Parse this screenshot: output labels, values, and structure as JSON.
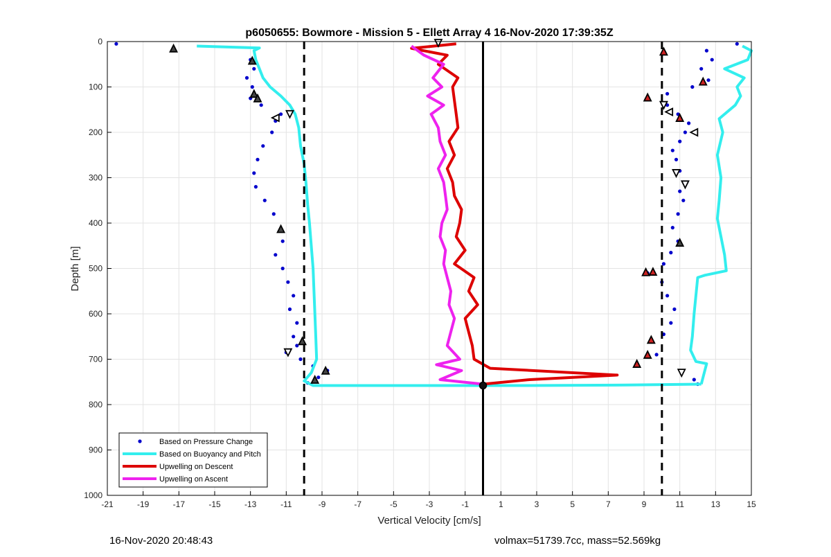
{
  "chart_data": {
    "type": "scatter",
    "title": "p6050655: Bowmore - Mission 5 - Ellett Array 4 16-Nov-2020 17:39:35Z",
    "xlabel": "Vertical Velocity [cm/s]",
    "ylabel": "Depth [m]",
    "xlim": [
      -21,
      15
    ],
    "ylim": [
      0,
      1000
    ],
    "y_reversed": true,
    "grid": true,
    "xticks": [
      -21,
      -19,
      -17,
      -15,
      -13,
      -11,
      -9,
      -7,
      -5,
      -3,
      -1,
      1,
      3,
      5,
      7,
      9,
      11,
      13,
      15
    ],
    "yticks": [
      0,
      100,
      200,
      300,
      400,
      500,
      600,
      700,
      800,
      900,
      1000
    ],
    "legend_position": "bottom-left",
    "reference_lines": {
      "dashed_x": [
        -10,
        10
      ],
      "solid_x": [
        0
      ]
    },
    "series": [
      {
        "name": "Based on Pressure Change",
        "color": "#0000cc",
        "style": "points",
        "descent": [
          [
            -20.5,
            5
          ],
          [
            -17.3,
            15
          ],
          [
            -13,
            40
          ],
          [
            -12.8,
            60
          ],
          [
            -13.2,
            80
          ],
          [
            -12.9,
            100
          ],
          [
            -13,
            125
          ],
          [
            -12.4,
            140
          ],
          [
            -11.3,
            160
          ],
          [
            -11.6,
            175
          ],
          [
            -11.8,
            200
          ],
          [
            -12.3,
            230
          ],
          [
            -12.6,
            260
          ],
          [
            -12.8,
            290
          ],
          [
            -12.7,
            320
          ],
          [
            -12.2,
            350
          ],
          [
            -11.7,
            380
          ],
          [
            -11.3,
            415
          ],
          [
            -11.2,
            440
          ],
          [
            -11.6,
            470
          ],
          [
            -11.2,
            500
          ],
          [
            -10.9,
            530
          ],
          [
            -10.6,
            560
          ],
          [
            -10.8,
            590
          ],
          [
            -10.4,
            620
          ],
          [
            -10.6,
            650
          ],
          [
            -10.4,
            670
          ],
          [
            -11.0,
            685
          ],
          [
            -10.2,
            700
          ],
          [
            -9.5,
            715
          ],
          [
            -8.7,
            725
          ],
          [
            -9.2,
            740
          ],
          [
            -9.8,
            752
          ]
        ],
        "ascent": [
          [
            14.2,
            5
          ],
          [
            12.5,
            20
          ],
          [
            12.8,
            40
          ],
          [
            12.2,
            60
          ],
          [
            12.6,
            85
          ],
          [
            11.7,
            100
          ],
          [
            10.3,
            115
          ],
          [
            9.2,
            128
          ],
          [
            10.3,
            140
          ],
          [
            10.9,
            160
          ],
          [
            11.5,
            180
          ],
          [
            11.3,
            200
          ],
          [
            11.0,
            220
          ],
          [
            10.6,
            240
          ],
          [
            10.8,
            260
          ],
          [
            11.0,
            285
          ],
          [
            11.3,
            310
          ],
          [
            11.0,
            330
          ],
          [
            11.2,
            350
          ],
          [
            10.9,
            380
          ],
          [
            10.6,
            410
          ],
          [
            10.9,
            440
          ],
          [
            10.5,
            465
          ],
          [
            10.1,
            490
          ],
          [
            9.2,
            510
          ],
          [
            10.0,
            530
          ],
          [
            10.3,
            560
          ],
          [
            10.7,
            590
          ],
          [
            10.5,
            620
          ],
          [
            10.1,
            645
          ],
          [
            9.4,
            660
          ],
          [
            9.7,
            690
          ],
          [
            8.6,
            712
          ],
          [
            11.1,
            730
          ],
          [
            11.8,
            745
          ],
          [
            12.0,
            755
          ]
        ]
      },
      {
        "name": "Based on Buoyancy and Pitch",
        "color": "#33eeee",
        "style": "line",
        "descent": [
          [
            -16,
            10
          ],
          [
            -12.5,
            14
          ],
          [
            -12.8,
            20
          ],
          [
            -12.7,
            40
          ],
          [
            -12.5,
            60
          ],
          [
            -12.3,
            80
          ],
          [
            -11.9,
            100
          ],
          [
            -11.3,
            120
          ],
          [
            -10.8,
            140
          ],
          [
            -10.5,
            160
          ],
          [
            -10.3,
            190
          ],
          [
            -10.2,
            230
          ],
          [
            -10.0,
            270
          ],
          [
            -9.9,
            310
          ],
          [
            -9.8,
            360
          ],
          [
            -9.7,
            400
          ],
          [
            -9.6,
            450
          ],
          [
            -9.5,
            500
          ],
          [
            -9.45,
            550
          ],
          [
            -9.4,
            600
          ],
          [
            -9.35,
            650
          ],
          [
            -9.3,
            700
          ],
          [
            -9.6,
            730
          ],
          [
            -10,
            748
          ],
          [
            -9.5,
            758
          ],
          [
            2,
            758
          ],
          [
            8,
            757
          ],
          [
            12.2,
            755
          ]
        ],
        "ascent": [
          [
            12.2,
            755
          ],
          [
            12.3,
            740
          ],
          [
            12.5,
            710
          ],
          [
            11.9,
            705
          ],
          [
            11.6,
            680
          ],
          [
            11.7,
            650
          ],
          [
            11.8,
            600
          ],
          [
            11.9,
            560
          ],
          [
            12.0,
            520
          ],
          [
            12.4,
            515
          ],
          [
            13.6,
            505
          ],
          [
            13.5,
            470
          ],
          [
            13.3,
            430
          ],
          [
            13.1,
            390
          ],
          [
            13.2,
            350
          ],
          [
            13.3,
            300
          ],
          [
            13.1,
            250
          ],
          [
            13.4,
            200
          ],
          [
            13.2,
            170
          ],
          [
            14.1,
            140
          ],
          [
            14.4,
            120
          ],
          [
            14.2,
            100
          ],
          [
            14.6,
            80
          ],
          [
            13.5,
            60
          ],
          [
            14.8,
            40
          ],
          [
            15,
            20
          ],
          [
            14.5,
            10
          ]
        ]
      },
      {
        "name": "Upwelling on Descent",
        "color": "#dd0000",
        "style": "line",
        "points": [
          [
            -1.5,
            5
          ],
          [
            -4,
            15
          ],
          [
            -2,
            30
          ],
          [
            -2.5,
            50
          ],
          [
            -1.4,
            80
          ],
          [
            -1.7,
            100
          ],
          [
            -1.6,
            130
          ],
          [
            -1.5,
            160
          ],
          [
            -1.4,
            190
          ],
          [
            -1.9,
            220
          ],
          [
            -1.6,
            250
          ],
          [
            -2.0,
            280
          ],
          [
            -1.7,
            310
          ],
          [
            -1.6,
            340
          ],
          [
            -1.2,
            370
          ],
          [
            -1.3,
            400
          ],
          [
            -1.5,
            430
          ],
          [
            -1.0,
            460
          ],
          [
            -1.6,
            490
          ],
          [
            -0.5,
            520
          ],
          [
            -0.8,
            550
          ],
          [
            -0.3,
            580
          ],
          [
            -1.0,
            610
          ],
          [
            -0.8,
            640
          ],
          [
            -0.6,
            670
          ],
          [
            -0.5,
            700
          ],
          [
            0.4,
            720
          ],
          [
            7.5,
            735
          ],
          [
            2.6,
            745
          ],
          [
            0.0,
            755
          ]
        ]
      },
      {
        "name": "Upwelling on Ascent",
        "color": "#ee22ee",
        "style": "line",
        "points": [
          [
            -4,
            10
          ],
          [
            -3.3,
            30
          ],
          [
            -2.2,
            50
          ],
          [
            -2.8,
            80
          ],
          [
            -2.3,
            100
          ],
          [
            -3.1,
            120
          ],
          [
            -2.2,
            140
          ],
          [
            -2.9,
            160
          ],
          [
            -2.5,
            190
          ],
          [
            -2.4,
            220
          ],
          [
            -2.1,
            250
          ],
          [
            -2.5,
            280
          ],
          [
            -2.2,
            310
          ],
          [
            -2.1,
            340
          ],
          [
            -2.0,
            370
          ],
          [
            -2.3,
            400
          ],
          [
            -2.4,
            430
          ],
          [
            -2.1,
            460
          ],
          [
            -2.2,
            490
          ],
          [
            -2.0,
            520
          ],
          [
            -1.8,
            550
          ],
          [
            -1.9,
            580
          ],
          [
            -1.6,
            610
          ],
          [
            -1.8,
            640
          ],
          [
            -2.0,
            670
          ],
          [
            -1.3,
            700
          ],
          [
            -2.6,
            712
          ],
          [
            -1.2,
            725
          ],
          [
            -2.4,
            745
          ],
          [
            0.0,
            755
          ]
        ]
      }
    ],
    "markers": [
      {
        "shape": "triangle-up",
        "fill": "#444444",
        "points": [
          [
            -17.3,
            15
          ],
          [
            -12.9,
            42
          ],
          [
            -12.8,
            115
          ],
          [
            -12.6,
            125
          ],
          [
            -11.3,
            413
          ],
          [
            -10.1,
            660
          ],
          [
            -8.8,
            725
          ],
          [
            -9.4,
            745
          ],
          [
            11.0,
            443
          ]
        ]
      },
      {
        "shape": "triangle-down",
        "fill": "#ffffff",
        "points": [
          [
            -2.5,
            3
          ],
          [
            -10.8,
            160
          ],
          [
            -10.9,
            685
          ],
          [
            10.1,
            140
          ],
          [
            11.3,
            315
          ],
          [
            10.8,
            290
          ],
          [
            11.1,
            730
          ]
        ]
      },
      {
        "shape": "triangle-left",
        "fill": "#ffffff",
        "points": [
          [
            -11.6,
            168
          ],
          [
            10.4,
            155
          ],
          [
            11.8,
            200
          ]
        ]
      },
      {
        "shape": "triangle-up-red",
        "fill": "#cc2222",
        "points": [
          [
            9.2,
            123
          ],
          [
            9.1,
            508
          ],
          [
            9.5,
            507
          ],
          [
            9.4,
            657
          ],
          [
            8.6,
            710
          ],
          [
            9.2,
            690
          ],
          [
            10.1,
            22
          ],
          [
            12.3,
            88
          ],
          [
            11.0,
            168
          ]
        ]
      },
      {
        "shape": "circle",
        "fill": "#111111",
        "points": [
          [
            0.0,
            758
          ]
        ]
      }
    ]
  },
  "legend": {
    "items": [
      {
        "label": "Based on Pressure Change",
        "color": "#0000cc",
        "kind": "point"
      },
      {
        "label": "Based on Buoyancy and Pitch",
        "color": "#33eeee",
        "kind": "line"
      },
      {
        "label": "Upwelling on Descent",
        "color": "#dd0000",
        "kind": "line"
      },
      {
        "label": "Upwelling on Ascent",
        "color": "#ee22ee",
        "kind": "line"
      }
    ]
  },
  "footer": {
    "timestamp": "16-Nov-2020 20:48:43",
    "stats": "volmax=51739.7cc, mass=52.569kg"
  }
}
